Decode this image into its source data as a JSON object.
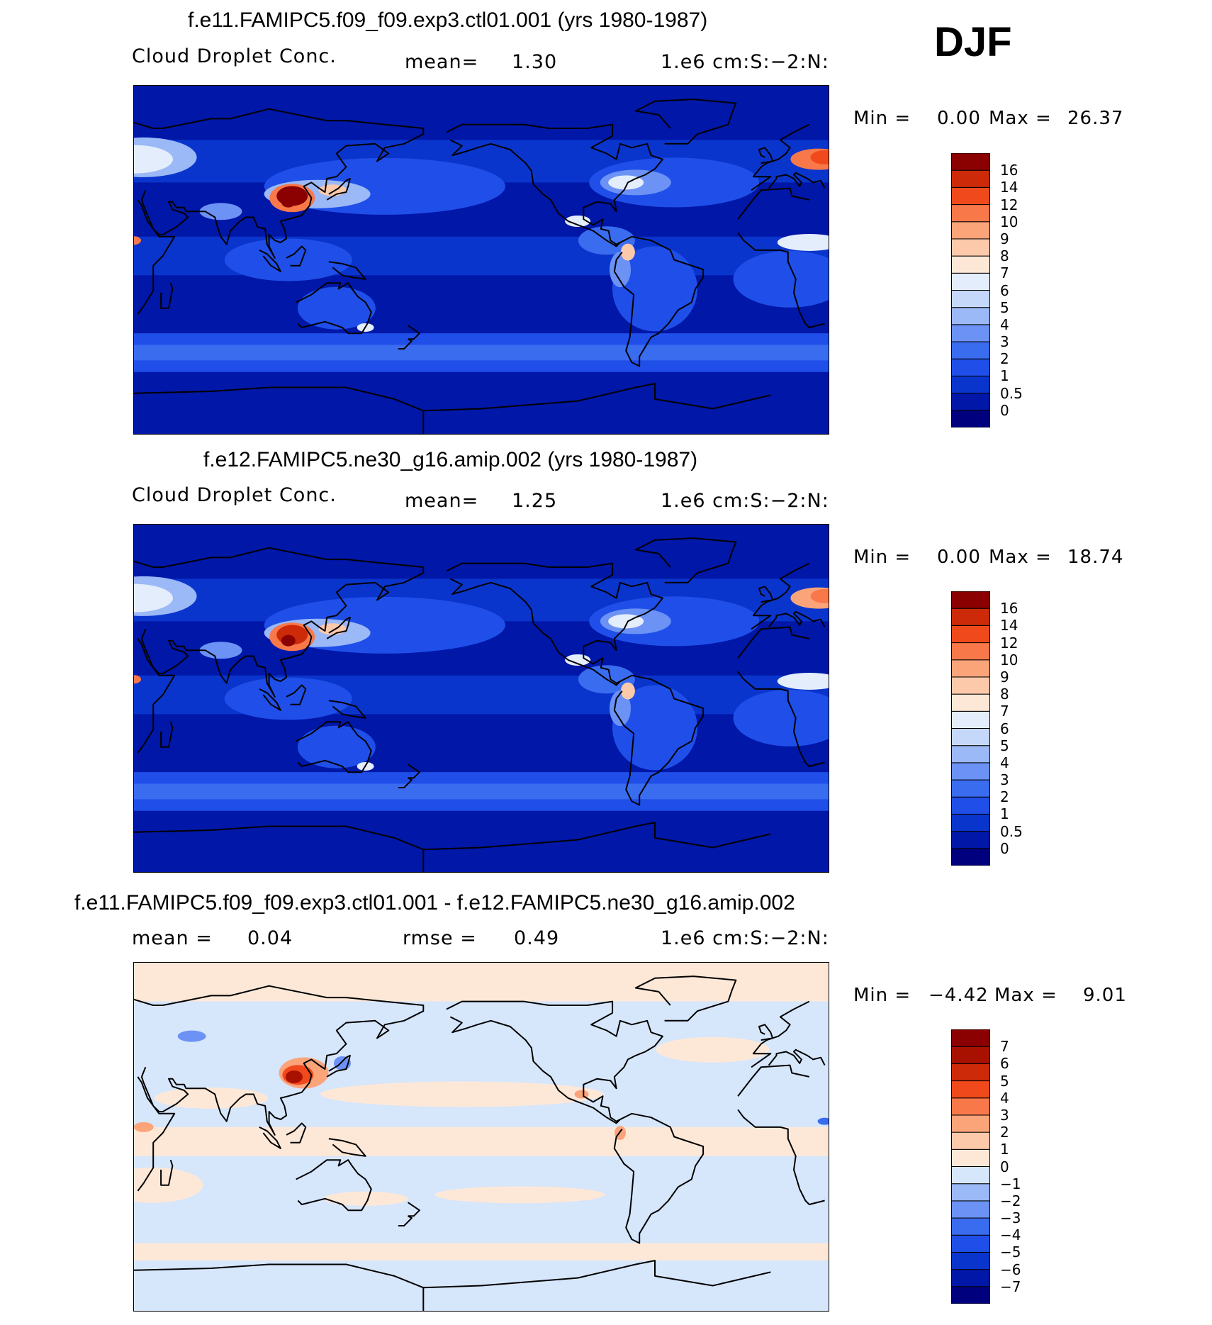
{
  "season": "DJF",
  "panels": [
    {
      "title": "f.e11.FAMIPC5.f09_f09.exp3.ctl01.001 (yrs 1980-1987)",
      "left_text": "Cloud Droplet Conc.",
      "mean_label": "mean=",
      "mean_value": "1.30",
      "units": "1.e6 cm:S:−2:N:",
      "min_label": "Min =",
      "min_value": "0.00",
      "max_label": "Max =",
      "max_value": "26.37"
    },
    {
      "title": "f.e12.FAMIPC5.ne30_g16.amip.002 (yrs 1980-1987)",
      "left_text": "Cloud Droplet Conc.",
      "mean_label": "mean=",
      "mean_value": "1.25",
      "units": "1.e6 cm:S:−2:N:",
      "min_label": "Min =",
      "min_value": "0.00",
      "max_label": "Max =",
      "max_value": "18.74"
    },
    {
      "title": "f.e11.FAMIPC5.f09_f09.exp3.ctl01.001 - f.e12.FAMIPC5.ne30_g16.amip.002",
      "mean_label": "mean =",
      "mean_value": "0.04",
      "rmse_label": "rmse =",
      "rmse_value": "0.49",
      "units": "1.e6 cm:S:−2:N:",
      "min_label": "Min =",
      "min_value": "−4.42",
      "max_label": "Max =",
      "max_value": "9.01"
    }
  ],
  "chart_data": [
    {
      "type": "heatmap",
      "title": "f.e11.FAMIPC5.f09_f09.exp3.ctl01.001 (yrs 1980-1987)",
      "variable": "Cloud Droplet Conc.",
      "units": "1.e6 cm:S:−2:N:",
      "mean": 1.3,
      "min": 0.0,
      "max": 26.37,
      "levels": [
        0,
        0.5,
        1,
        2,
        3,
        4,
        5,
        6,
        7,
        8,
        9,
        10,
        12,
        14,
        16
      ],
      "level_labels": [
        "0",
        "0.5",
        "1",
        "2",
        "3",
        "4",
        "5",
        "6",
        "7",
        "8",
        "9",
        "10",
        "12",
        "14",
        "16"
      ],
      "colors": [
        "#00007f",
        "#0017a8",
        "#0a35cc",
        "#1f4fe8",
        "#3a6cf0",
        "#6b92f4",
        "#9bb8f7",
        "#c6d8fa",
        "#e4edfc",
        "#fde8d8",
        "#fcc9aa",
        "#fba47a",
        "#f9784a",
        "#f04a1c",
        "#cc2a08",
        "#8b0000"
      ]
    },
    {
      "type": "heatmap",
      "title": "f.e12.FAMIPC5.ne30_g16.amip.002 (yrs 1980-1987)",
      "variable": "Cloud Droplet Conc.",
      "units": "1.e6 cm:S:−2:N:",
      "mean": 1.25,
      "min": 0.0,
      "max": 18.74,
      "levels": [
        0,
        0.5,
        1,
        2,
        3,
        4,
        5,
        6,
        7,
        8,
        9,
        10,
        12,
        14,
        16
      ],
      "level_labels": [
        "0",
        "0.5",
        "1",
        "2",
        "3",
        "4",
        "5",
        "6",
        "7",
        "8",
        "9",
        "10",
        "12",
        "14",
        "16"
      ],
      "colors": [
        "#00007f",
        "#0017a8",
        "#0a35cc",
        "#1f4fe8",
        "#3a6cf0",
        "#6b92f4",
        "#9bb8f7",
        "#c6d8fa",
        "#e4edfc",
        "#fde8d8",
        "#fcc9aa",
        "#fba47a",
        "#f9784a",
        "#f04a1c",
        "#cc2a08",
        "#8b0000"
      ]
    },
    {
      "type": "heatmap",
      "title": "f.e11.FAMIPC5.f09_f09.exp3.ctl01.001 - f.e12.FAMIPC5.ne30_g16.amip.002",
      "units": "1.e6 cm:S:−2:N:",
      "mean": 0.04,
      "rmse": 0.49,
      "min": -4.42,
      "max": 9.01,
      "levels": [
        -7,
        -6,
        -5,
        -4,
        -3,
        -2,
        -1,
        0,
        1,
        2,
        3,
        4,
        5,
        6,
        7
      ],
      "level_labels": [
        "−7",
        "−6",
        "−5",
        "−4",
        "−3",
        "−2",
        "−1",
        "0",
        "1",
        "2",
        "3",
        "4",
        "5",
        "6",
        "7"
      ],
      "colors": [
        "#00007f",
        "#0017a8",
        "#0a35cc",
        "#1f4fe8",
        "#3a6cf0",
        "#6b92f4",
        "#9bb8f7",
        "#d6e6fb",
        "#fde8d8",
        "#fcc9aa",
        "#fba47a",
        "#f9784a",
        "#f04a1c",
        "#cc2a08",
        "#a81000",
        "#8b0000"
      ]
    }
  ]
}
